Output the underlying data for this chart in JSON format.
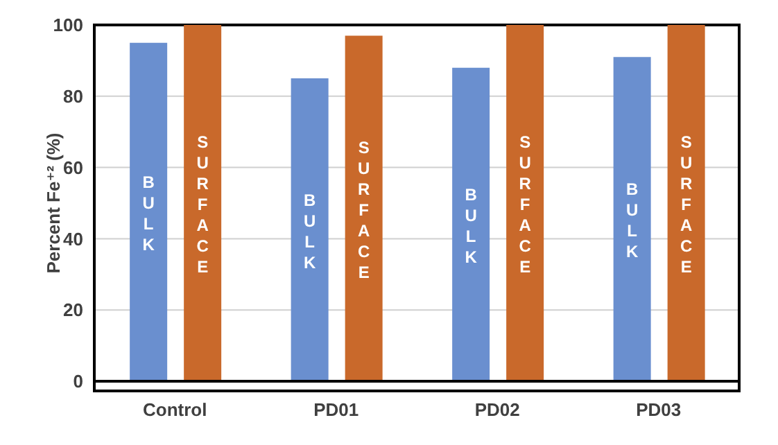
{
  "chart_data": {
    "type": "bar",
    "ylabel": "Percent Fe⁺² (%)",
    "categories": [
      "Control",
      "PD01",
      "PD02",
      "PD03"
    ],
    "series": [
      {
        "name": "BULK",
        "color": "#6a8fcf",
        "values": [
          95,
          85,
          88,
          91
        ]
      },
      {
        "name": "SURFACE",
        "color": "#c9692b",
        "values": [
          100,
          97,
          100,
          100
        ]
      }
    ],
    "ylim": [
      0,
      100
    ],
    "yticks": [
      0,
      20,
      40,
      60,
      80,
      100
    ],
    "grid": "y",
    "legend": false
  }
}
